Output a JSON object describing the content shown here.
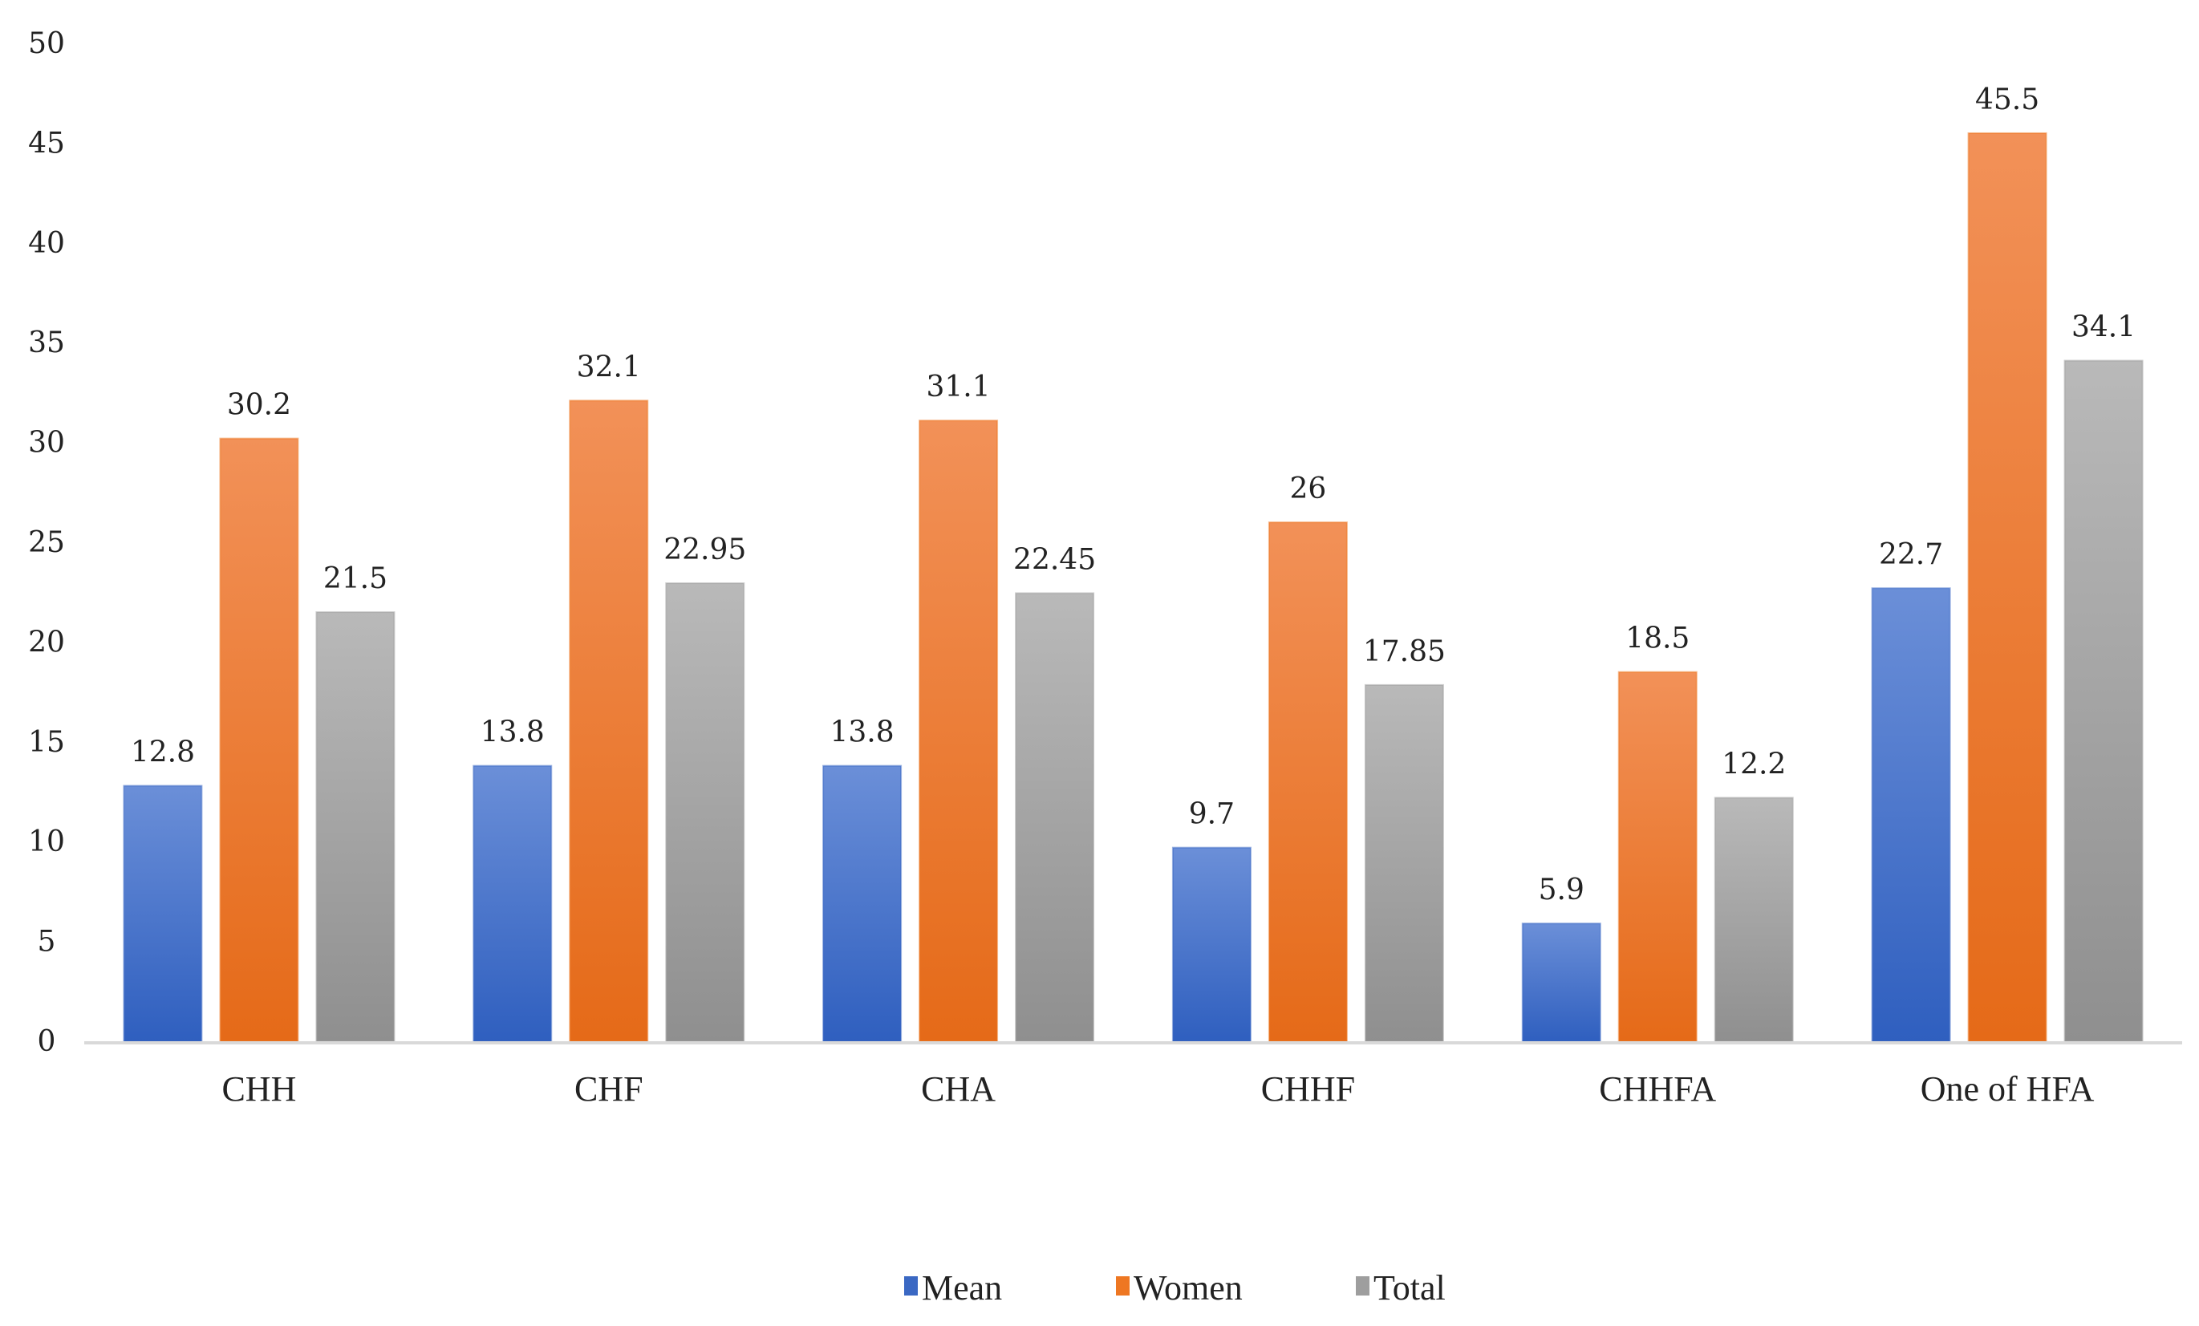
{
  "chart_data": {
    "type": "bar",
    "categories": [
      "CHH",
      "CHF",
      "CHA",
      "CHHF",
      "CHHFA",
      "One of HFA"
    ],
    "series": [
      {
        "name": "Mean",
        "values": [
          12.8,
          13.8,
          13.8,
          9.7,
          5.9,
          22.7
        ],
        "labels": [
          "12.8",
          "13.8",
          "13.8",
          "9.7",
          "5.9",
          "22.7"
        ],
        "color": "#3a68c3"
      },
      {
        "name": "Women",
        "values": [
          30.2,
          32.1,
          31.1,
          26,
          18.5,
          45.5
        ],
        "labels": [
          "30.2",
          "32.1",
          "31.1",
          "26",
          "18.5",
          "45.5"
        ],
        "color": "#ee7722"
      },
      {
        "name": "Total",
        "values": [
          21.5,
          22.95,
          22.45,
          17.85,
          12.2,
          34.1
        ],
        "labels": [
          "21.5",
          "22.95",
          "22.45",
          "17.85",
          "12.2",
          "34.1"
        ],
        "color": "#9e9e9e"
      }
    ],
    "yticks": [
      "0",
      "5",
      "10",
      "15",
      "20",
      "25",
      "30",
      "35",
      "40",
      "45",
      "50"
    ],
    "ylim": [
      0,
      50
    ],
    "grid": false,
    "legend": "bottom-center"
  }
}
